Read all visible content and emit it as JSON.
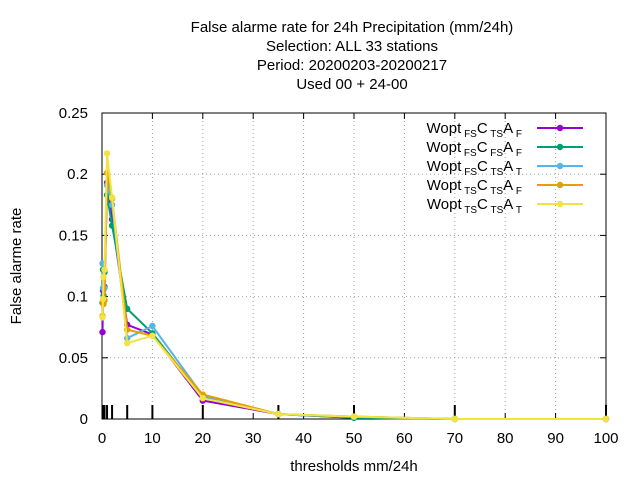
{
  "chart_data": {
    "type": "line",
    "title_lines": [
      "False alarme rate  for 24h Precipitation (mm/24h)",
      "Selection: ALL     33 stations",
      "Period: 20200203-20200217",
      "Used  00 + 24-00"
    ],
    "xlabel": "thresholds mm/24h",
    "ylabel": "False alarme rate",
    "xlim": [
      0,
      100
    ],
    "ylim": [
      0,
      0.25
    ],
    "x_ticks": [
      0,
      10,
      20,
      30,
      40,
      50,
      60,
      70,
      80,
      90,
      100
    ],
    "y_ticks": [
      0,
      0.05,
      0.1,
      0.15,
      0.2,
      0.25
    ],
    "y_tick_labels": [
      "0",
      "0.05",
      "0.1",
      "0.15",
      "0.2",
      "0.25"
    ],
    "grid": true,
    "legend_position": "top-right",
    "threshold_marks": [
      0.1,
      0.2,
      0.3,
      0.5,
      1,
      2,
      5,
      10,
      20,
      35,
      50,
      70,
      100
    ],
    "x": [
      0.1,
      0.2,
      0.3,
      0.5,
      1,
      2,
      5,
      10,
      20,
      35,
      50,
      70,
      100
    ],
    "series": [
      {
        "name": "Wopt",
        "sub1": "FS",
        "mid": "C",
        "sub2": "TS",
        "end": "A",
        "sub3": "F",
        "color": "#9400d3",
        "values": [
          0.071,
          0.105,
          0.097,
          0.108,
          0.193,
          0.163,
          0.077,
          0.069,
          0.015,
          0.004,
          0.001,
          0.0,
          0.0
        ]
      },
      {
        "name": "Wopt",
        "sub1": "FS",
        "mid": "C",
        "sub2": "FS",
        "end": "A",
        "sub3": "F",
        "color": "#009e73",
        "values": [
          0.095,
          0.122,
          0.101,
          0.12,
          0.183,
          0.158,
          0.09,
          0.07,
          0.018,
          0.004,
          0.001,
          0.0,
          0.0
        ]
      },
      {
        "name": "Wopt",
        "sub1": "FS",
        "mid": "C",
        "sub2": "TS",
        "end": "A",
        "sub3": "T",
        "color": "#56b4e9",
        "values": [
          0.127,
          0.107,
          0.097,
          0.107,
          0.191,
          0.175,
          0.066,
          0.076,
          0.019,
          0.004,
          0.002,
          0.0,
          0.0
        ]
      },
      {
        "name": "Wopt",
        "sub1": "TS",
        "mid": "C",
        "sub2": "TS",
        "end": "A",
        "sub3": "F",
        "color": "#e69f00",
        "values": [
          0.084,
          0.096,
          0.094,
          0.097,
          0.201,
          0.18,
          0.073,
          0.068,
          0.02,
          0.004,
          0.002,
          0.0,
          0.0
        ]
      },
      {
        "name": "Wopt",
        "sub1": "TS",
        "mid": "C",
        "sub2": "TS",
        "end": "A",
        "sub3": "T",
        "color": "#f0e442",
        "values": [
          0.083,
          0.098,
          0.116,
          0.122,
          0.217,
          0.181,
          0.062,
          0.068,
          0.017,
          0.004,
          0.002,
          0.0,
          0.0
        ]
      }
    ]
  }
}
